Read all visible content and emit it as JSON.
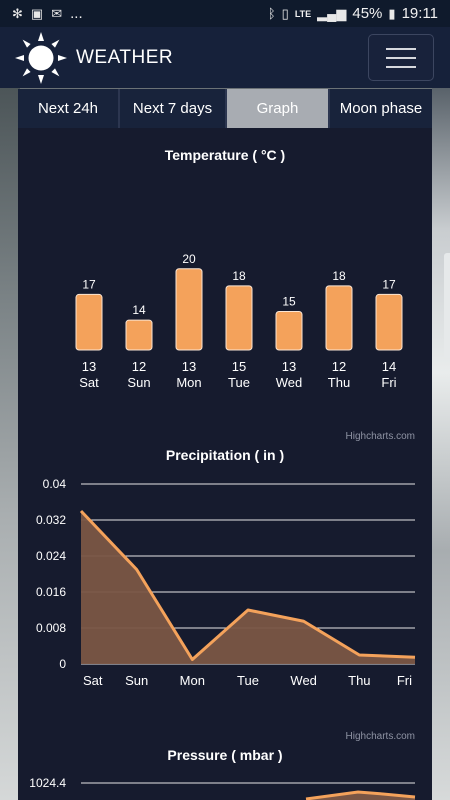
{
  "status_bar": {
    "left_icons": [
      "fan-icon",
      "image-icon",
      "mail-icon"
    ],
    "ellipsis": "...",
    "right_icons": [
      "bluetooth-icon",
      "vibrate-icon",
      "lte-icon",
      "signal-icon"
    ],
    "lte": "LTE",
    "battery": "45%",
    "time": "19:11"
  },
  "app_bar": {
    "title": "WEATHER",
    "logo": "sun-icon",
    "menu": "hamburger-menu-icon"
  },
  "tabs": [
    {
      "label": "Next 24h",
      "active": false
    },
    {
      "label": "Next 7 days",
      "active": false
    },
    {
      "label": "Graph",
      "active": true
    },
    {
      "label": "Moon phase",
      "active": false
    }
  ],
  "charts": {
    "credit": "Highcharts.com"
  },
  "chart_data": [
    {
      "type": "bar",
      "title": "Temperature ( °C )",
      "categories": [
        "13\nSat",
        "12\nSun",
        "13\nMon",
        "15\nTue",
        "13\nWed",
        "12\nThu",
        "14\nFri"
      ],
      "x_day_numbers": [
        "13",
        "12",
        "13",
        "15",
        "13",
        "12",
        "14"
      ],
      "x_day_names": [
        "Sat",
        "Sun",
        "Mon",
        "Tue",
        "Wed",
        "Thu",
        "Fri"
      ],
      "values": [
        17,
        14,
        20,
        18,
        15,
        18,
        17
      ],
      "bar_color": "#f4a25b",
      "data_labels": true
    },
    {
      "type": "area",
      "title": "Precipitation ( in )",
      "categories": [
        "Sat",
        "Sun",
        "Mon",
        "Tue",
        "Wed",
        "Thu",
        "Fri"
      ],
      "values": [
        0.034,
        0.021,
        0.001,
        0.012,
        0.0095,
        0.002,
        0.0015
      ],
      "y_ticks": [
        "0",
        "0.008",
        "0.016",
        "0.024",
        "0.032",
        "0.04"
      ],
      "ylim": [
        0,
        0.04
      ],
      "line_color": "#f4a25b",
      "fill_color": "#7a5645",
      "grid": true
    },
    {
      "type": "area",
      "title": "Pressure ( mbar )",
      "y_ticks": [
        "1024.4"
      ],
      "line_color": "#f4a25b",
      "fill_color": "#7a5645",
      "grid": true
    }
  ]
}
